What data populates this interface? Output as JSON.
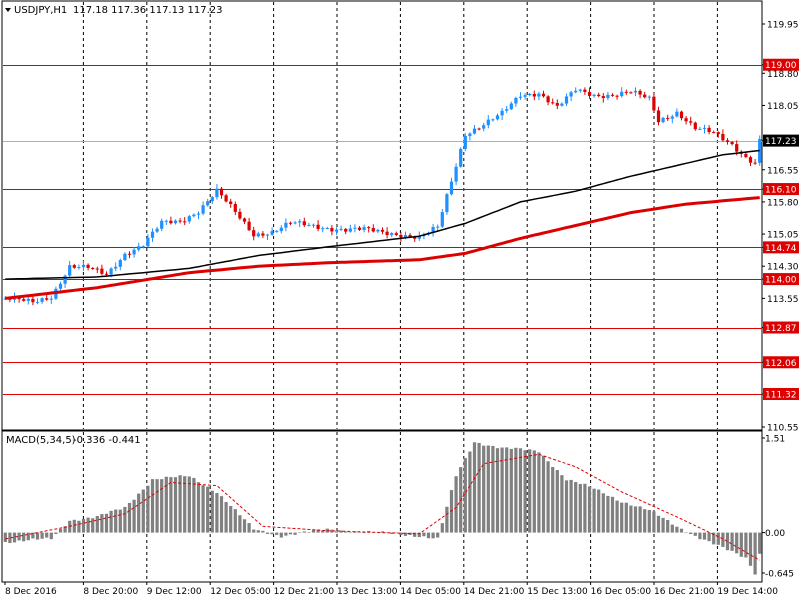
{
  "header": {
    "symbol_label": "USDJPY,H1",
    "ohlc_values": "117.18 117.36 117.13 117.23"
  },
  "macd_header": {
    "label": "MACD(5,34,5)",
    "values": "-0.336 -0.441"
  },
  "colors": {
    "background": "#ffffff",
    "grid": "#000000",
    "bull_candle": "#1e90ff",
    "bear_candle": "#dd0000",
    "ma_fast": "#000000",
    "ma_slow": "#dd0000",
    "level_line": "#dd0000",
    "price_tag": "#dd0000",
    "current_price_tag": "#000000",
    "histogram": "#808080",
    "signal": "#dd0000"
  },
  "chart_data": [
    {
      "type": "candlestick",
      "instrument": "USDJPY",
      "timeframe": "H1",
      "ylim": [
        110.55,
        119.95
      ],
      "y_ticks": [
        "119.95",
        "119.00",
        "118.80",
        "118.05",
        "117.23",
        "116.55",
        "116.10",
        "115.80",
        "115.05",
        "114.74",
        "114.30",
        "114.00",
        "113.55",
        "112.87",
        "112.06",
        "111.32",
        "110.55"
      ],
      "x_ticks": [
        "8 Dec 2016",
        "8 Dec 20:00",
        "9 Dec 12:00",
        "12 Dec 05:00",
        "12 Dec 21:00",
        "13 Dec 13:00",
        "14 Dec 05:00",
        "14 Dec 21:00",
        "15 Dec 13:00",
        "16 Dec 05:00",
        "16 Dec 21:00",
        "19 Dec 14:00"
      ],
      "horizontal_levels": [
        119.0,
        116.1,
        114.74,
        114.0,
        112.87,
        112.06,
        111.32
      ],
      "current_price": 117.23,
      "close_path": [
        [
          0,
          113.55
        ],
        [
          6,
          113.45
        ],
        [
          10,
          113.6
        ],
        [
          14,
          114.3
        ],
        [
          18,
          114.25
        ],
        [
          22,
          114.1
        ],
        [
          26,
          114.6
        ],
        [
          30,
          114.8
        ],
        [
          34,
          115.3
        ],
        [
          38,
          115.35
        ],
        [
          42,
          115.6
        ],
        [
          46,
          116.05
        ],
        [
          50,
          115.55
        ],
        [
          54,
          115.05
        ],
        [
          58,
          115.1
        ],
        [
          62,
          115.3
        ],
        [
          66,
          115.25
        ],
        [
          70,
          115.2
        ],
        [
          74,
          115.15
        ],
        [
          78,
          115.15
        ],
        [
          82,
          115.1
        ],
        [
          86,
          115.05
        ],
        [
          90,
          114.95
        ],
        [
          94,
          115.2
        ],
        [
          97,
          116.3
        ],
        [
          100,
          117.4
        ],
        [
          104,
          117.6
        ],
        [
          108,
          117.85
        ],
        [
          112,
          118.3
        ],
        [
          116,
          118.35
        ],
        [
          120,
          118.0
        ],
        [
          124,
          118.4
        ],
        [
          128,
          118.3
        ],
        [
          132,
          118.3
        ],
        [
          136,
          118.35
        ],
        [
          140,
          118.2
        ],
        [
          142,
          117.7
        ],
        [
          146,
          117.9
        ],
        [
          150,
          117.5
        ],
        [
          154,
          117.4
        ],
        [
          158,
          117.15
        ],
        [
          161,
          116.85
        ],
        [
          163,
          116.7
        ],
        [
          164,
          117.23
        ]
      ],
      "ma_fast_path": [
        [
          0,
          114.0
        ],
        [
          20,
          114.05
        ],
        [
          40,
          114.25
        ],
        [
          55,
          114.55
        ],
        [
          70,
          114.75
        ],
        [
          90,
          115.0
        ],
        [
          100,
          115.3
        ],
        [
          112,
          115.8
        ],
        [
          124,
          116.05
        ],
        [
          136,
          116.4
        ],
        [
          148,
          116.7
        ],
        [
          156,
          116.9
        ],
        [
          164,
          117.0
        ]
      ],
      "ma_slow_path": [
        [
          0,
          113.55
        ],
        [
          20,
          113.8
        ],
        [
          40,
          114.15
        ],
        [
          55,
          114.3
        ],
        [
          70,
          114.38
        ],
        [
          90,
          114.45
        ],
        [
          100,
          114.6
        ],
        [
          112,
          114.95
        ],
        [
          124,
          115.25
        ],
        [
          136,
          115.55
        ],
        [
          148,
          115.75
        ],
        [
          164,
          115.9
        ]
      ]
    },
    {
      "type": "histogram",
      "name": "MACD(5,34,5)",
      "ylim": [
        -0.645,
        1.51
      ],
      "y_ticks": [
        "1.51",
        "0.00",
        "-0.645"
      ],
      "value_path": [
        [
          0,
          -0.15
        ],
        [
          10,
          -0.1
        ],
        [
          14,
          0.2
        ],
        [
          20,
          0.25
        ],
        [
          26,
          0.4
        ],
        [
          32,
          0.85
        ],
        [
          40,
          0.9
        ],
        [
          46,
          0.65
        ],
        [
          54,
          0.05
        ],
        [
          60,
          -0.05
        ],
        [
          70,
          0.05
        ],
        [
          80,
          0.0
        ],
        [
          90,
          -0.05
        ],
        [
          94,
          -0.1
        ],
        [
          98,
          0.9
        ],
        [
          102,
          1.45
        ],
        [
          108,
          1.35
        ],
        [
          116,
          1.3
        ],
        [
          122,
          0.85
        ],
        [
          128,
          0.7
        ],
        [
          134,
          0.5
        ],
        [
          140,
          0.35
        ],
        [
          146,
          0.1
        ],
        [
          150,
          -0.05
        ],
        [
          156,
          -0.25
        ],
        [
          161,
          -0.4
        ],
        [
          163,
          -0.64
        ],
        [
          164,
          -0.336
        ]
      ],
      "signal_path": [
        [
          0,
          -0.1
        ],
        [
          14,
          0.1
        ],
        [
          26,
          0.3
        ],
        [
          36,
          0.8
        ],
        [
          46,
          0.75
        ],
        [
          56,
          0.1
        ],
        [
          70,
          0.03
        ],
        [
          90,
          -0.02
        ],
        [
          98,
          0.4
        ],
        [
          104,
          1.1
        ],
        [
          116,
          1.25
        ],
        [
          124,
          1.05
        ],
        [
          134,
          0.65
        ],
        [
          146,
          0.25
        ],
        [
          156,
          -0.1
        ],
        [
          164,
          -0.441
        ]
      ]
    }
  ]
}
